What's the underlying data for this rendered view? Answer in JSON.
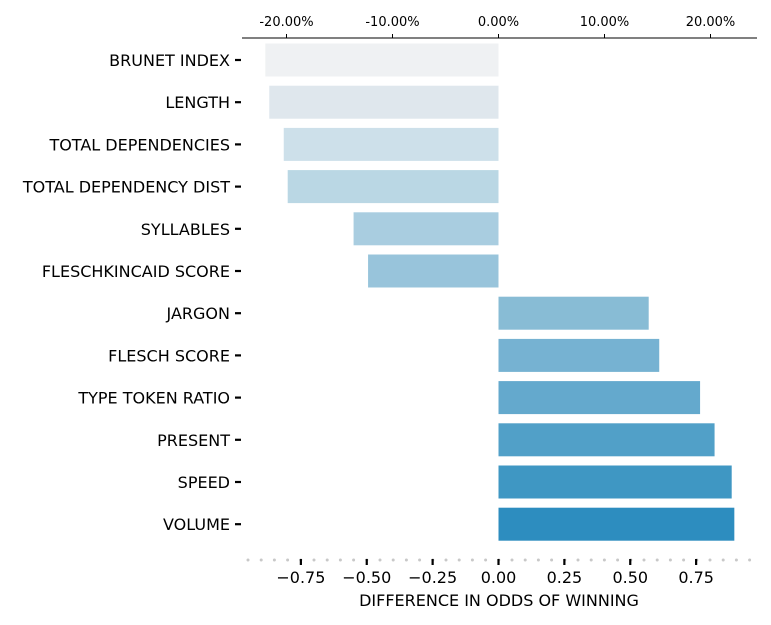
{
  "chart_data": {
    "type": "bar",
    "orientation": "horizontal",
    "categories": [
      "BRUNET INDEX",
      "LENGTH",
      "TOTAL DEPENDENCIES",
      "TOTAL DEPENDENCY DIST",
      "SYLLABLES",
      "FLESCHKINCAID SCORE",
      "JARGON",
      "FLESCH SCORE",
      "TYPE TOKEN RATIO",
      "PRESENT",
      "SPEED",
      "VOLUME"
    ],
    "values": [
      -0.885,
      -0.87,
      -0.815,
      -0.8,
      -0.55,
      -0.495,
      0.57,
      0.61,
      0.765,
      0.82,
      0.885,
      0.895
    ],
    "colors": [
      "#eff1f3",
      "#dfe7ed",
      "#cde0ea",
      "#bad7e4",
      "#a9cde0",
      "#98c4db",
      "#88bcd5",
      "#76b2d2",
      "#64a9cd",
      "#51a0c8",
      "#3f97c3",
      "#2d8dbf"
    ],
    "xlabel": "DIFFERENCE IN ODDS OF WINNING",
    "xlim": [
      -0.95,
      0.96
    ],
    "xticks": [
      -0.75,
      -0.5,
      -0.25,
      0.0,
      0.25,
      0.5,
      0.75
    ],
    "xtick_labels": [
      "−0.75",
      "−0.50",
      "−0.25",
      "0.00",
      "0.25",
      "0.50",
      "0.75"
    ],
    "secondary_axis": {
      "position": "top",
      "ticks": [
        -20,
        -10,
        0,
        10,
        20
      ],
      "tick_labels": [
        "-20.00%",
        "-10.00%",
        "0.00%",
        "10.00%",
        "20.00%"
      ]
    },
    "grid": false,
    "legend": "none"
  }
}
